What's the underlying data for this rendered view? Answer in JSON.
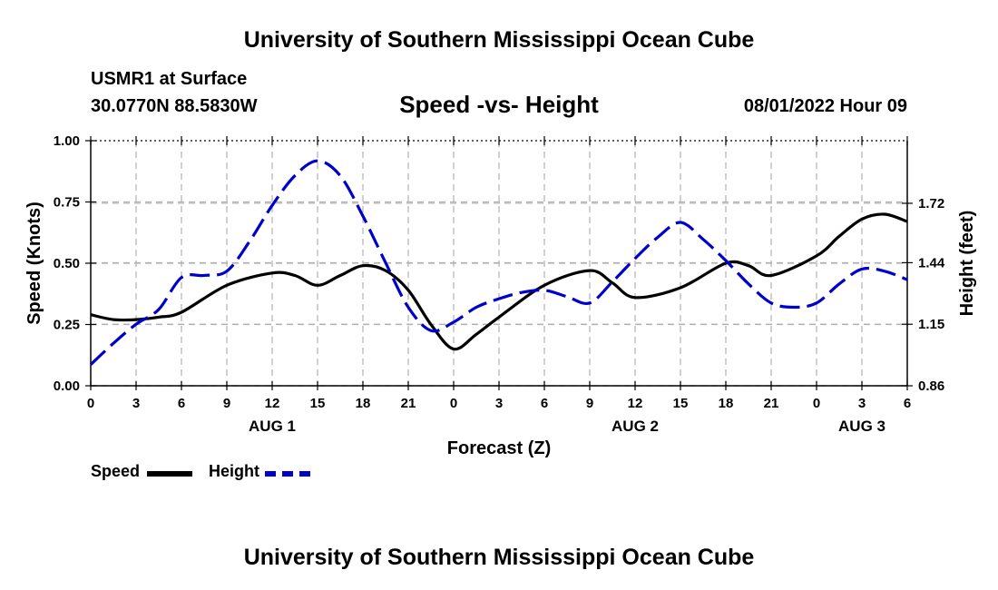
{
  "header": {
    "title": "University of Southern Mississippi Ocean Cube",
    "station": "USMR1 at Surface",
    "coords": "30.0770N  88.5830W",
    "subtitle": "Speed -vs- Height",
    "datetime": "08/01/2022 Hour 09"
  },
  "footer": {
    "title": "University of Southern Mississippi Ocean Cube"
  },
  "legend": {
    "speed_label": "Speed",
    "height_label": "Height"
  },
  "colors": {
    "speed": "#000000",
    "height": "#0000cc",
    "grid": "#b0b0b0"
  },
  "chart_data": {
    "type": "line",
    "xlabel": "Forecast (Z)",
    "ylabel": "Speed (Knots)",
    "y2label": "Height (feet)",
    "x_hours": [
      0,
      3,
      6,
      9,
      12,
      15,
      18,
      21,
      24,
      27,
      30,
      33,
      36,
      39,
      42,
      45,
      48,
      51,
      54
    ],
    "x_tick_labels": [
      "0",
      "3",
      "6",
      "9",
      "12",
      "15",
      "18",
      "21",
      "0",
      "3",
      "6",
      "9",
      "12",
      "15",
      "18",
      "21",
      "0",
      "3",
      "6"
    ],
    "day_labels": [
      {
        "label": "AUG 1",
        "hour": 12
      },
      {
        "label": "AUG 2",
        "hour": 36
      },
      {
        "label": "AUG 3",
        "hour": 51
      }
    ],
    "xlim": [
      0,
      54
    ],
    "ylim": [
      0,
      1.0
    ],
    "y_ticks": [
      0.0,
      0.25,
      0.5,
      0.75,
      1.0
    ],
    "y_tick_labels": [
      "0.00",
      "0.25",
      "0.50",
      "0.75",
      "1.00"
    ],
    "y2lim": [
      0.86,
      2.015
    ],
    "y2_ticks": [
      0.86,
      1.15,
      1.44,
      1.72
    ],
    "y2_tick_labels": [
      "0.86",
      "1.15",
      "1.44",
      "1.72"
    ],
    "series": [
      {
        "name": "Speed",
        "axis": "left",
        "style": "solid",
        "x": [
          0,
          1.5,
          3,
          4.5,
          6,
          9,
          12,
          13.5,
          15,
          16.5,
          18,
          19.5,
          21,
          22.5,
          24,
          25.5,
          27,
          30,
          33,
          34.5,
          36,
          39,
          42,
          43.5,
          45,
          48,
          49.5,
          51,
          52.5,
          54
        ],
        "y": [
          0.29,
          0.27,
          0.27,
          0.28,
          0.3,
          0.41,
          0.46,
          0.45,
          0.41,
          0.45,
          0.49,
          0.47,
          0.39,
          0.25,
          0.15,
          0.21,
          0.28,
          0.41,
          0.47,
          0.42,
          0.36,
          0.4,
          0.5,
          0.49,
          0.45,
          0.53,
          0.61,
          0.68,
          0.7,
          0.67
        ]
      },
      {
        "name": "Height",
        "axis": "right",
        "style": "dashed",
        "x": [
          0,
          1.5,
          3,
          4.5,
          6,
          7.5,
          9,
          10.5,
          12,
          13.5,
          15,
          16.5,
          18,
          19.5,
          21,
          22.5,
          24,
          25.5,
          27,
          28.5,
          30,
          31.5,
          33,
          34.5,
          36,
          37.5,
          39,
          40.5,
          42,
          43.5,
          45,
          46.5,
          48,
          49.5,
          51,
          52.5,
          54
        ],
        "y": [
          0.96,
          1.06,
          1.15,
          1.22,
          1.37,
          1.38,
          1.4,
          1.54,
          1.71,
          1.85,
          1.92,
          1.85,
          1.66,
          1.44,
          1.23,
          1.12,
          1.16,
          1.23,
          1.27,
          1.3,
          1.31,
          1.28,
          1.25,
          1.35,
          1.46,
          1.56,
          1.63,
          1.55,
          1.45,
          1.34,
          1.25,
          1.23,
          1.25,
          1.34,
          1.41,
          1.4,
          1.36
        ]
      }
    ]
  }
}
